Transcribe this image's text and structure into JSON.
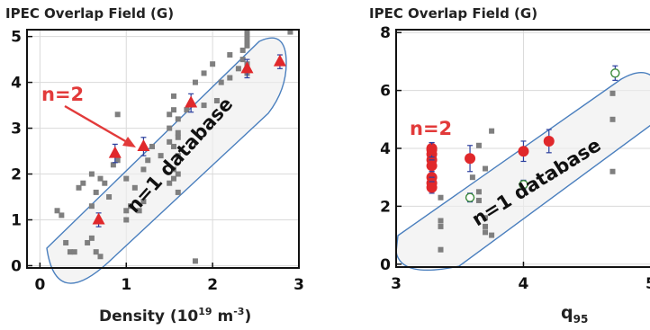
{
  "chart_data": [
    {
      "type": "scatter",
      "title": "IPEC Overlap Field (G)",
      "xlabel": "Density (10",
      "xlabel_exp": "19",
      "xlabel_unit": " m",
      "xlabel_unit_exp": "-3",
      "xlabel_close": ")",
      "xlim": [
        -0.15,
        3.0
      ],
      "ylim": [
        -0.05,
        5.15
      ],
      "xticks": [
        0,
        1,
        2,
        3
      ],
      "yticks": [
        0,
        1,
        2,
        3,
        4,
        5
      ],
      "grid": true,
      "band_label": "n=1 database",
      "annotation": "n=2",
      "series": [
        {
          "marker": "square",
          "color": "#7f7f7f",
          "x": [
            0.2,
            0.25,
            0.3,
            0.35,
            0.4,
            0.55,
            0.6,
            0.65,
            0.7,
            0.45,
            0.5,
            0.6,
            0.75,
            0.8,
            0.6,
            0.65,
            0.7,
            0.85,
            0.9,
            1.0,
            1.0,
            1.05,
            1.1,
            1.0,
            1.15,
            1.2,
            1.25,
            1.3,
            1.2,
            1.4,
            1.5,
            1.5,
            1.5,
            1.5,
            1.55,
            1.55,
            1.55,
            1.55,
            1.55,
            1.6,
            1.6,
            1.6,
            1.6,
            1.6,
            1.6,
            1.7,
            1.8,
            1.9,
            2.0,
            2.05,
            2.1,
            2.2,
            2.2,
            2.3,
            2.35,
            2.35,
            2.4,
            2.4,
            2.4,
            2.4,
            2.4,
            2.4,
            2.9,
            0.9,
            1.8,
            1.9
          ],
          "y": [
            1.2,
            1.1,
            0.5,
            0.3,
            0.3,
            0.5,
            0.6,
            0.3,
            0.2,
            1.7,
            1.8,
            2.0,
            1.8,
            1.5,
            1.3,
            1.6,
            1.9,
            2.2,
            2.3,
            1.2,
            1.0,
            1.3,
            1.7,
            1.9,
            1.2,
            2.1,
            2.3,
            2.6,
            1.4,
            2.4,
            1.8,
            2.7,
            3.0,
            3.3,
            3.4,
            2.6,
            3.7,
            2.1,
            1.9,
            2.8,
            3.2,
            2.4,
            2.0,
            2.9,
            1.6,
            3.4,
            4.0,
            4.2,
            4.4,
            3.6,
            4.0,
            4.6,
            4.1,
            4.3,
            4.5,
            4.7,
            5.0,
            4.9,
            4.8,
            5.1,
            4.2,
            4.4,
            5.1,
            3.3,
            0.1,
            3.5
          ]
        },
        {
          "marker": "triangle",
          "color": "#e0282b",
          "x": [
            0.68,
            0.87,
            1.2,
            1.75,
            2.4,
            2.78
          ],
          "y": [
            1.0,
            2.45,
            2.6,
            3.55,
            4.3,
            4.45
          ],
          "yerr": [
            0.15,
            0.2,
            0.2,
            0.2,
            0.2,
            0.15
          ]
        }
      ]
    },
    {
      "type": "scatter",
      "title": "IPEC Overlap Field (G)",
      "xlabel": "q",
      "xlabel_sub": "95",
      "xlim": [
        3.0,
        5.05
      ],
      "ylim": [
        -0.1,
        8.1
      ],
      "xticks": [
        3,
        4,
        5
      ],
      "yticks": [
        0,
        2,
        4,
        6,
        8
      ],
      "grid": true,
      "band_label": "n=1 database",
      "annotation": "n=2",
      "series": [
        {
          "marker": "square",
          "color": "#7f7f7f",
          "x": [
            3.35,
            3.35,
            3.35,
            3.35,
            3.6,
            3.65,
            3.65,
            3.7,
            3.7,
            3.65,
            3.75,
            3.7,
            3.7,
            3.75,
            4.7,
            4.7,
            4.7
          ],
          "y": [
            2.3,
            1.5,
            1.3,
            0.5,
            3.0,
            2.5,
            2.2,
            1.6,
            1.1,
            4.1,
            4.6,
            3.3,
            1.3,
            1.0,
            5.9,
            5.0,
            3.2
          ]
        },
        {
          "marker": "circle-filled",
          "color": "#e0282b",
          "x": [
            3.28,
            3.28,
            3.28,
            3.28,
            3.28,
            3.28,
            3.28,
            3.28,
            3.58,
            4.0,
            4.2
          ],
          "y": [
            4.0,
            3.8,
            3.6,
            3.4,
            3.0,
            2.8,
            2.65,
            3.95,
            3.65,
            3.9,
            4.25
          ],
          "yerr": [
            0.2,
            0.2,
            0.2,
            0.2,
            0.2,
            0.2,
            0.2,
            0.25,
            0.45,
            0.35,
            0.4
          ]
        },
        {
          "marker": "circle-open",
          "color": "#3a8a3a",
          "x": [
            3.58,
            4.0,
            4.72
          ],
          "y": [
            2.3,
            2.75,
            6.6
          ],
          "yerr": [
            0.15,
            0.15,
            0.25
          ]
        }
      ]
    }
  ]
}
